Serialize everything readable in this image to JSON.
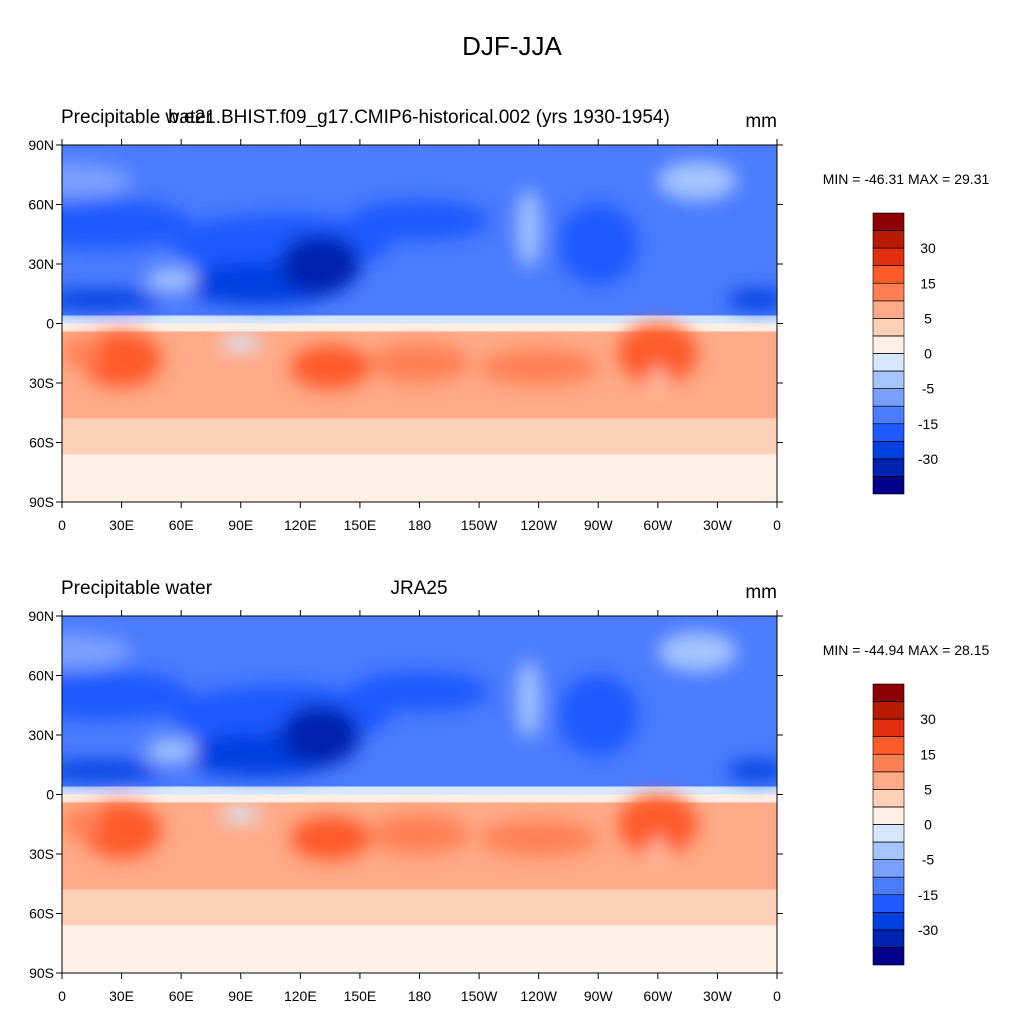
{
  "title": "DJF-JJA",
  "panels": [
    {
      "left_title": "Precipitable water",
      "center_title": "b.e21.BHIST.f09_g17.CMIP6-historical.002 (yrs 1930-1954)",
      "right_title": "mm",
      "stats": "MIN = -46.31 MAX =  29.31"
    },
    {
      "left_title": "Precipitable water",
      "center_title": "JRA25",
      "right_title": "mm",
      "stats": "MIN = -44.94 MAX =  28.15"
    }
  ],
  "lat_ticks": [
    {
      "value": 90,
      "label": "90N"
    },
    {
      "value": 60,
      "label": "60N"
    },
    {
      "value": 30,
      "label": "30N"
    },
    0,
    {
      "value": -30,
      "label": "30S"
    },
    {
      "value": -60,
      "label": "60S"
    },
    {
      "value": -90,
      "label": "90S"
    }
  ],
  "lon_ticks": [
    0,
    {
      "value": 30,
      "label": "30E"
    },
    {
      "value": 60,
      "label": "60E"
    },
    {
      "value": 90,
      "label": "90E"
    },
    {
      "value": 120,
      "label": "120E"
    },
    {
      "value": 150,
      "label": "150E"
    },
    180,
    {
      "value": 210,
      "label": "150W"
    },
    {
      "value": 240,
      "label": "120W"
    },
    {
      "value": 270,
      "label": "90W"
    },
    {
      "value": 300,
      "label": "60W"
    },
    {
      "value": 330,
      "label": "30W"
    },
    {
      "value": 360,
      "label": "0"
    }
  ],
  "colorbar": {
    "levels": [
      -40,
      -30,
      -20,
      -15,
      -10,
      -5,
      -2,
      0,
      2,
      5,
      10,
      15,
      20,
      30,
      40
    ],
    "colors": [
      "#00008b",
      "#0022b0",
      "#0040e0",
      "#1e5aff",
      "#4b7bff",
      "#7aa0ff",
      "#a6c4ff",
      "#d6e8ff",
      "#fff0e6",
      "#ffd0b8",
      "#ffaa88",
      "#ff8055",
      "#ff5a2a",
      "#e03010",
      "#b81a00",
      "#8b0000"
    ]
  }
}
